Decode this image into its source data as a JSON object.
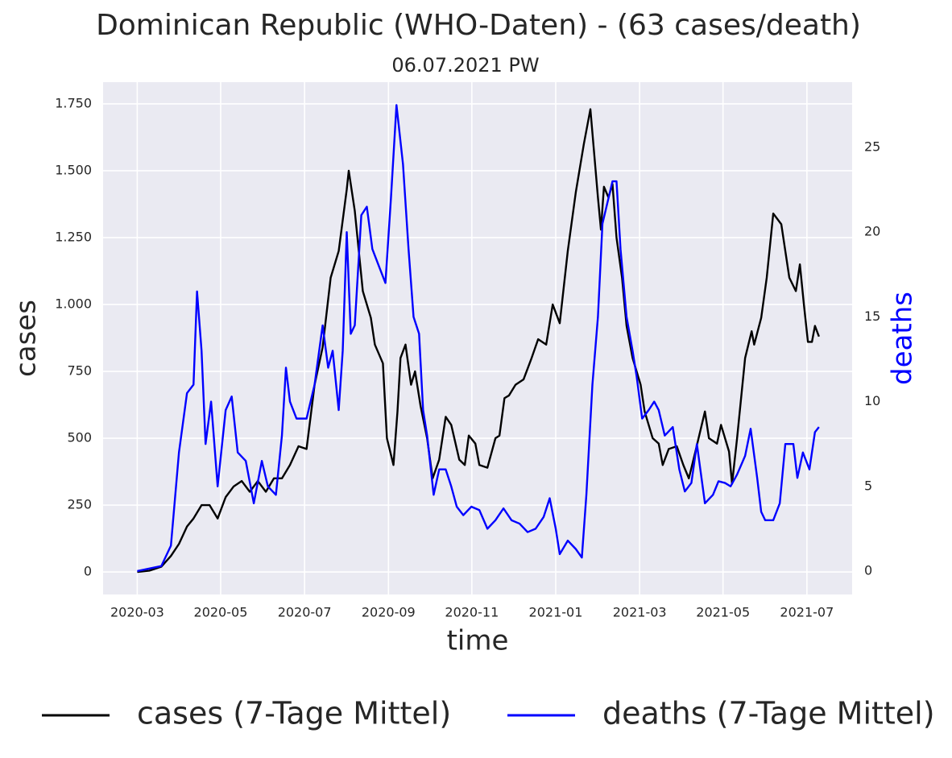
{
  "chart_data": {
    "type": "line",
    "title": "Dominican Republic (WHO-Daten) - (63 cases/death)",
    "subtitle": "06.07.2021 PW",
    "x_label": "time",
    "y_label": "cases",
    "y2_label": "deaths",
    "grid": true,
    "legend": "bottom",
    "xlim": [
      2020.099,
      2021.59
    ],
    "xticks": [
      {
        "value": 2020.167,
        "label": "2020-03"
      },
      {
        "value": 2020.333,
        "label": "2020-05"
      },
      {
        "value": 2020.5,
        "label": "2020-07"
      },
      {
        "value": 2020.667,
        "label": "2020-09"
      },
      {
        "value": 2020.833,
        "label": "2020-11"
      },
      {
        "value": 2021.0,
        "label": "2021-01"
      },
      {
        "value": 2021.167,
        "label": "2021-03"
      },
      {
        "value": 2021.333,
        "label": "2021-05"
      },
      {
        "value": 2021.5,
        "label": "2021-07"
      }
    ],
    "ylim": [
      -84,
      1831
    ],
    "yticks": [
      0,
      250,
      500,
      750,
      {
        "value": 1000,
        "label": "1.000"
      },
      {
        "value": 1250,
        "label": "1.250"
      },
      {
        "value": 1500,
        "label": "1.500"
      },
      {
        "value": 1750,
        "label": "1.750"
      }
    ],
    "y2lim": [
      -1.38,
      28.85
    ],
    "y2ticks": [
      0,
      5,
      10,
      15,
      20,
      25
    ],
    "series": [
      {
        "name": "cases (7-Tage Mittel)",
        "color": "#000000",
        "x": [
          2020.167,
          2020.191,
          2020.215,
          2020.234,
          2020.25,
          2020.266,
          2020.279,
          2020.295,
          2020.311,
          2020.327,
          2020.343,
          2020.359,
          2020.375,
          2020.391,
          2020.407,
          2020.423,
          2020.439,
          2020.455,
          2020.471,
          2020.488,
          2020.504,
          2020.52,
          2020.536,
          2020.552,
          2020.568,
          2020.584,
          2020.588,
          2020.6,
          2020.616,
          2020.632,
          2020.64,
          2020.656,
          2020.664,
          2020.677,
          2020.685,
          2020.691,
          2020.701,
          2020.712,
          2020.72,
          2020.731,
          2020.744,
          2020.755,
          2020.768,
          2020.781,
          2020.792,
          2020.808,
          2020.819,
          2020.827,
          2020.84,
          2020.848,
          2020.864,
          2020.88,
          2020.888,
          2020.898,
          2020.907,
          2020.92,
          2020.936,
          2020.952,
          2020.965,
          2020.981,
          2020.994,
          2021.008,
          2021.024,
          2021.04,
          2021.056,
          2021.069,
          2021.084,
          2021.09,
          2021.096,
          2021.105,
          2021.113,
          2021.121,
          2021.132,
          2021.141,
          2021.153,
          2021.169,
          2021.177,
          2021.193,
          2021.205,
          2021.213,
          2021.225,
          2021.241,
          2021.254,
          2021.265,
          2021.278,
          2021.297,
          2021.305,
          2021.321,
          2021.329,
          2021.345,
          2021.351,
          2021.361,
          2021.377,
          2021.39,
          2021.395,
          2021.409,
          2021.42,
          2021.433,
          2021.449,
          2021.465,
          2021.478,
          2021.486,
          2021.494,
          2021.502,
          2021.51,
          2021.516,
          2021.524
        ],
        "values": [
          0,
          5,
          20,
          60,
          105,
          170,
          200,
          250,
          250,
          200,
          280,
          320,
          340,
          300,
          340,
          300,
          350,
          350,
          400,
          470,
          460,
          700,
          840,
          1100,
          1200,
          1430,
          1500,
          1350,
          1050,
          950,
          850,
          780,
          500,
          400,
          600,
          800,
          850,
          700,
          750,
          620,
          500,
          350,
          420,
          580,
          550,
          420,
          400,
          510,
          480,
          400,
          390,
          500,
          510,
          650,
          660,
          700,
          720,
          800,
          870,
          850,
          1000,
          930,
          1200,
          1420,
          1600,
          1730,
          1400,
          1280,
          1440,
          1400,
          1450,
          1250,
          1100,
          920,
          800,
          700,
          600,
          500,
          480,
          400,
          460,
          470,
          400,
          350,
          450,
          600,
          500,
          480,
          550,
          450,
          330,
          500,
          800,
          900,
          850,
          950,
          1100,
          1340,
          1300,
          1100,
          1050,
          1150,
          1000,
          860,
          860,
          920,
          880
        ]
      },
      {
        "name": "deaths (7-Tage Mittel)",
        "color": "#0000ff",
        "axis": "y2",
        "x": [
          2020.167,
          2020.215,
          2020.234,
          2020.25,
          2020.266,
          2020.279,
          2020.286,
          2020.295,
          2020.303,
          2020.314,
          2020.327,
          2020.343,
          2020.355,
          2020.367,
          2020.383,
          2020.399,
          2020.415,
          2020.427,
          2020.443,
          2020.455,
          2020.463,
          2020.471,
          2020.484,
          2020.504,
          2020.52,
          2020.536,
          2020.547,
          2020.556,
          2020.568,
          2020.576,
          2020.584,
          2020.592,
          2020.6,
          2020.613,
          2020.624,
          2020.635,
          2020.648,
          2020.661,
          2020.672,
          2020.683,
          2020.696,
          2020.707,
          2020.717,
          2020.728,
          2020.736,
          2020.744,
          2020.757,
          2020.768,
          2020.781,
          2020.792,
          2020.803,
          2020.816,
          2020.832,
          2020.848,
          2020.864,
          2020.88,
          2020.896,
          2020.912,
          2020.928,
          2020.944,
          2020.96,
          2020.976,
          2020.988,
          2021.0,
          2021.008,
          2021.024,
          2021.04,
          2021.052,
          2021.061,
          2021.073,
          2021.084,
          2021.093,
          2021.105,
          2021.113,
          2021.121,
          2021.129,
          2021.141,
          2021.153,
          2021.161,
          2021.172,
          2021.185,
          2021.196,
          2021.205,
          2021.217,
          2021.233,
          2021.246,
          2021.257,
          2021.27,
          2021.281,
          2021.297,
          2021.313,
          2021.324,
          2021.337,
          2021.348,
          2021.361,
          2021.377,
          2021.388,
          2021.401,
          2021.409,
          2021.417,
          2021.433,
          2021.446,
          2021.457,
          2021.473,
          2021.481,
          2021.492,
          2021.505,
          2021.516,
          2021.524
        ],
        "values": [
          0,
          0.3,
          1.5,
          7,
          10.5,
          11,
          16.5,
          13,
          7.5,
          10,
          5,
          9.5,
          10.3,
          7,
          6.5,
          4,
          6.5,
          5,
          4.5,
          8,
          12,
          10,
          9,
          9,
          11,
          14.5,
          12,
          13,
          9.5,
          13,
          20,
          14,
          14.5,
          21,
          21.5,
          19,
          18,
          17,
          22,
          27.5,
          24,
          19,
          15,
          14,
          9.5,
          8,
          4.5,
          6,
          6,
          5,
          3.8,
          3.3,
          3.8,
          3.6,
          2.5,
          3,
          3.7,
          3,
          2.8,
          2.3,
          2.5,
          3.2,
          4.3,
          2.5,
          1,
          1.8,
          1.3,
          0.8,
          4.5,
          11,
          15,
          20.5,
          22,
          23,
          23,
          19,
          15,
          13,
          11.5,
          9,
          9.5,
          10,
          9.5,
          8,
          8.5,
          6,
          4.7,
          5.2,
          7.5,
          4,
          4.5,
          5.3,
          5.2,
          5,
          5.7,
          6.8,
          8.4,
          5.5,
          3.5,
          3,
          3,
          4,
          7.5,
          7.5,
          5.5,
          7,
          6,
          8.2,
          8.5
        ]
      }
    ]
  }
}
